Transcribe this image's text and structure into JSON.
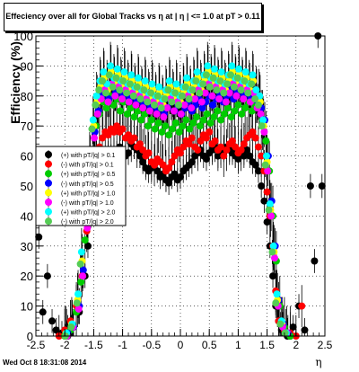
{
  "page": {
    "title": "Effeciency over all for Global Tracks vs  η at | η | <= 1.0 at pT > 0.11",
    "footer": "Wed Oct  8 18:31:08 2014"
  },
  "chart_data": {
    "type": "scatter",
    "title": "Effeciency over all for Global Tracks vs  η at | η | <= 1.0 at pT > 0.11",
    "xlabel": "η",
    "ylabel": "Efficiency (%)",
    "xlim": [
      -2.5,
      2.5
    ],
    "ylim": [
      0,
      100
    ],
    "x_ticks": [
      "-2.5",
      "-2",
      "-1.5",
      "-1",
      "-0.5",
      "0",
      "0.5",
      "1",
      "1.5",
      "2",
      "2.5"
    ],
    "y_ticks": [
      "0",
      "10",
      "20",
      "30",
      "40",
      "50",
      "60",
      "70",
      "80",
      "90",
      "100"
    ],
    "legend_position": "left-middle",
    "series": [
      {
        "name": "(+) with pT/|q| > 0.1",
        "color": "#000000",
        "x": [
          -2.45,
          -2.38,
          -2.3,
          -2.22,
          -2.15,
          -2.05,
          -1.95,
          -1.85,
          -1.75,
          -1.65,
          -1.6,
          -1.55,
          -1.5,
          -1.45,
          -1.4,
          -1.35,
          -1.3,
          -1.25,
          -1.2,
          -1.15,
          -1.1,
          -1.05,
          -1.0,
          -0.95,
          -0.9,
          -0.85,
          -0.8,
          -0.75,
          -0.7,
          -0.65,
          -0.6,
          -0.55,
          -0.5,
          -0.45,
          -0.4,
          -0.35,
          -0.3,
          -0.25,
          -0.2,
          -0.15,
          -0.1,
          -0.05,
          0.0,
          0.05,
          0.1,
          0.15,
          0.2,
          0.25,
          0.3,
          0.35,
          0.4,
          0.45,
          0.5,
          0.55,
          0.6,
          0.65,
          0.7,
          0.75,
          0.8,
          0.85,
          0.9,
          0.95,
          1.0,
          1.05,
          1.1,
          1.15,
          1.2,
          1.25,
          1.3,
          1.35,
          1.4,
          1.45,
          1.5,
          1.55,
          1.6,
          1.65,
          1.7,
          1.75,
          1.8,
          1.85,
          1.9,
          1.95,
          2.05,
          2.15,
          2.25,
          2.32,
          2.38,
          2.45
        ],
        "y": [
          33,
          8,
          20,
          5,
          2,
          1,
          0,
          3,
          8,
          20,
          30,
          40,
          47,
          52,
          55,
          57,
          59,
          61,
          60,
          62,
          61,
          63,
          62,
          60,
          61,
          64,
          63,
          62,
          60,
          58,
          56,
          55,
          56,
          57,
          55,
          53,
          54,
          52,
          51,
          53,
          54,
          52,
          53,
          55,
          56,
          57,
          58,
          60,
          61,
          62,
          60,
          59,
          61,
          62,
          63,
          60,
          61,
          62,
          63,
          62,
          61,
          60,
          59,
          61,
          60,
          62,
          60,
          58,
          57,
          55,
          50,
          45,
          38,
          30,
          20,
          10,
          5,
          2,
          1,
          0,
          0,
          3,
          10,
          2,
          50,
          25,
          100,
          50
        ]
      },
      {
        "name": "(-) with pT/|q| > 0.1",
        "color": "#ff0000",
        "x": [
          -2.1,
          -2.0,
          -1.9,
          -1.8,
          -1.7,
          -1.62,
          -1.55,
          -1.5,
          -1.45,
          -1.4,
          -1.35,
          -1.3,
          -1.25,
          -1.2,
          -1.15,
          -1.1,
          -1.05,
          -1.0,
          -0.95,
          -0.9,
          -0.85,
          -0.8,
          -0.75,
          -0.7,
          -0.65,
          -0.6,
          -0.55,
          -0.5,
          -0.45,
          -0.4,
          -0.35,
          -0.3,
          -0.25,
          -0.2,
          -0.15,
          -0.1,
          -0.05,
          0.0,
          0.05,
          0.1,
          0.15,
          0.2,
          0.25,
          0.3,
          0.35,
          0.4,
          0.45,
          0.5,
          0.55,
          0.6,
          0.65,
          0.7,
          0.75,
          0.8,
          0.85,
          0.9,
          0.95,
          1.0,
          1.05,
          1.1,
          1.15,
          1.2,
          1.25,
          1.3,
          1.35,
          1.4,
          1.45,
          1.5,
          1.55,
          1.6,
          1.65,
          1.7,
          1.8,
          1.9,
          2.0,
          2.1
        ],
        "y": [
          0,
          2,
          5,
          10,
          20,
          35,
          48,
          55,
          60,
          63,
          66,
          68,
          67,
          69,
          68,
          70,
          68,
          69,
          66,
          67,
          65,
          66,
          63,
          64,
          62,
          60,
          61,
          58,
          57,
          59,
          58,
          57,
          55,
          56,
          58,
          60,
          62,
          61,
          63,
          65,
          64,
          66,
          63,
          62,
          65,
          67,
          66,
          68,
          64,
          65,
          62,
          63,
          60,
          62,
          64,
          65,
          63,
          61,
          62,
          64,
          66,
          67,
          68,
          66,
          63,
          60,
          55,
          48,
          40,
          30,
          15,
          5,
          2,
          1,
          0,
          10
        ]
      },
      {
        "name": "(+) with pT/|q| > 0.5",
        "color": "#00cc00",
        "x": [
          -2.0,
          -1.9,
          -1.8,
          -1.72,
          -1.65,
          -1.58,
          -1.52,
          -1.46,
          -1.4,
          -1.34,
          -1.28,
          -1.22,
          -1.16,
          -1.1,
          -1.04,
          -0.98,
          -0.92,
          -0.86,
          -0.8,
          -0.74,
          -0.68,
          -0.62,
          -0.56,
          -0.5,
          -0.44,
          -0.38,
          -0.32,
          -0.26,
          -0.2,
          -0.14,
          -0.08,
          -0.02,
          0.04,
          0.1,
          0.16,
          0.22,
          0.28,
          0.34,
          0.4,
          0.46,
          0.52,
          0.58,
          0.64,
          0.7,
          0.76,
          0.82,
          0.88,
          0.94,
          1.0,
          1.06,
          1.12,
          1.18,
          1.24,
          1.3,
          1.36,
          1.42,
          1.48,
          1.54,
          1.6,
          1.66,
          1.72,
          1.8,
          1.9
        ],
        "y": [
          0,
          2,
          8,
          18,
          32,
          48,
          62,
          70,
          74,
          78,
          76,
          80,
          77,
          79,
          75,
          78,
          74,
          76,
          73,
          75,
          72,
          74,
          70,
          72,
          69,
          71,
          68,
          70,
          67,
          69,
          71,
          68,
          70,
          72,
          69,
          71,
          73,
          70,
          72,
          74,
          71,
          73,
          75,
          72,
          74,
          76,
          73,
          75,
          77,
          74,
          76,
          78,
          75,
          77,
          79,
          72,
          65,
          55,
          40,
          25,
          10,
          3,
          0
        ]
      },
      {
        "name": "(-) with pT/|q| > 0.5",
        "color": "#0000ff",
        "x": [
          -1.95,
          -1.85,
          -1.75,
          -1.68,
          -1.6,
          -1.54,
          -1.48,
          -1.42,
          -1.36,
          -1.3,
          -1.24,
          -1.18,
          -1.12,
          -1.06,
          -1.0,
          -0.94,
          -0.88,
          -0.82,
          -0.76,
          -0.7,
          -0.64,
          -0.58,
          -0.52,
          -0.46,
          -0.4,
          -0.34,
          -0.28,
          -0.22,
          -0.16,
          -0.1,
          -0.04,
          0.02,
          0.08,
          0.14,
          0.2,
          0.26,
          0.32,
          0.38,
          0.44,
          0.5,
          0.56,
          0.62,
          0.68,
          0.74,
          0.8,
          0.86,
          0.92,
          0.98,
          1.04,
          1.1,
          1.16,
          1.22,
          1.28,
          1.34,
          1.4,
          1.46,
          1.52,
          1.58,
          1.64,
          1.7,
          1.78,
          1.86
        ],
        "y": [
          1,
          3,
          10,
          22,
          38,
          55,
          68,
          75,
          80,
          82,
          79,
          84,
          81,
          83,
          80,
          82,
          79,
          81,
          78,
          80,
          77,
          79,
          76,
          78,
          75,
          77,
          74,
          76,
          78,
          75,
          77,
          74,
          76,
          78,
          75,
          77,
          79,
          76,
          78,
          80,
          77,
          79,
          81,
          78,
          80,
          82,
          79,
          81,
          83,
          80,
          82,
          79,
          81,
          78,
          76,
          72,
          60,
          45,
          30,
          12,
          4,
          1
        ]
      },
      {
        "name": "(+) with pT/|q| > 1.0",
        "color": "#ffff00",
        "x": [
          -1.98,
          -1.88,
          -1.78,
          -1.7,
          -1.62,
          -1.56,
          -1.5,
          -1.44,
          -1.38,
          -1.32,
          -1.26,
          -1.2,
          -1.14,
          -1.08,
          -1.02,
          -0.96,
          -0.9,
          -0.84,
          -0.78,
          -0.72,
          -0.66,
          -0.6,
          -0.54,
          -0.48,
          -0.42,
          -0.36,
          -0.3,
          -0.24,
          -0.18,
          -0.12,
          -0.06,
          0.0,
          0.06,
          0.12,
          0.18,
          0.24,
          0.3,
          0.36,
          0.42,
          0.48,
          0.54,
          0.6,
          0.66,
          0.72,
          0.78,
          0.84,
          0.9,
          0.96,
          1.02,
          1.08,
          1.14,
          1.2,
          1.26,
          1.32,
          1.38,
          1.44,
          1.5,
          1.56,
          1.62,
          1.68,
          1.76,
          1.84
        ],
        "y": [
          1,
          4,
          12,
          25,
          40,
          58,
          70,
          78,
          83,
          86,
          82,
          88,
          84,
          87,
          83,
          86,
          82,
          85,
          81,
          84,
          80,
          83,
          79,
          82,
          78,
          81,
          77,
          80,
          83,
          79,
          82,
          78,
          81,
          84,
          80,
          83,
          86,
          82,
          85,
          88,
          84,
          87,
          83,
          86,
          82,
          85,
          88,
          84,
          87,
          83,
          86,
          82,
          85,
          80,
          78,
          70,
          58,
          42,
          28,
          12,
          4,
          1
        ]
      },
      {
        "name": "(-) with pT/|q| > 1.0",
        "color": "#ff00ff",
        "x": [
          -1.96,
          -1.86,
          -1.76,
          -1.69,
          -1.61,
          -1.55,
          -1.49,
          -1.43,
          -1.37,
          -1.31,
          -1.25,
          -1.19,
          -1.13,
          -1.07,
          -1.01,
          -0.95,
          -0.89,
          -0.83,
          -0.77,
          -0.71,
          -0.65,
          -0.59,
          -0.53,
          -0.47,
          -0.41,
          -0.35,
          -0.29,
          -0.23,
          -0.17,
          -0.11,
          -0.05,
          0.01,
          0.07,
          0.13,
          0.19,
          0.25,
          0.31,
          0.37,
          0.43,
          0.49,
          0.55,
          0.61,
          0.67,
          0.73,
          0.79,
          0.85,
          0.91,
          0.97,
          1.03,
          1.09,
          1.15,
          1.21,
          1.27,
          1.33,
          1.39,
          1.45,
          1.51,
          1.57,
          1.63,
          1.69,
          1.77,
          1.85
        ],
        "y": [
          0,
          3,
          9,
          20,
          36,
          52,
          66,
          74,
          79,
          82,
          78,
          84,
          80,
          83,
          79,
          82,
          78,
          81,
          77,
          80,
          76,
          79,
          75,
          78,
          74,
          77,
          73,
          76,
          79,
          75,
          78,
          74,
          77,
          80,
          76,
          79,
          82,
          78,
          81,
          84,
          80,
          83,
          79,
          82,
          78,
          81,
          84,
          80,
          83,
          79,
          82,
          78,
          81,
          76,
          74,
          68,
          55,
          40,
          26,
          10,
          3,
          1
        ]
      },
      {
        "name": "(+) with pT/|q| > 2.0",
        "color": "#00ffff",
        "x": [
          -1.97,
          -1.87,
          -1.77,
          -1.71,
          -1.63,
          -1.57,
          -1.51,
          -1.45,
          -1.39,
          -1.33,
          -1.27,
          -1.21,
          -1.15,
          -1.09,
          -1.03,
          -0.97,
          -0.91,
          -0.85,
          -0.79,
          -0.73,
          -0.67,
          -0.61,
          -0.55,
          -0.49,
          -0.43,
          -0.37,
          -0.31,
          -0.25,
          -0.19,
          -0.13,
          -0.07,
          -0.01,
          0.05,
          0.11,
          0.17,
          0.23,
          0.29,
          0.35,
          0.41,
          0.47,
          0.53,
          0.59,
          0.65,
          0.71,
          0.77,
          0.83,
          0.89,
          0.95,
          1.01,
          1.07,
          1.13,
          1.19,
          1.25,
          1.31,
          1.37,
          1.43,
          1.49,
          1.55,
          1.61,
          1.67,
          1.75,
          1.83
        ],
        "y": [
          1,
          4,
          14,
          28,
          44,
          60,
          72,
          80,
          85,
          88,
          84,
          90,
          86,
          89,
          85,
          88,
          84,
          87,
          83,
          86,
          82,
          85,
          81,
          84,
          80,
          83,
          79,
          82,
          85,
          81,
          84,
          80,
          83,
          86,
          82,
          85,
          88,
          84,
          87,
          90,
          86,
          89,
          85,
          88,
          84,
          87,
          90,
          86,
          89,
          85,
          88,
          84,
          87,
          82,
          80,
          72,
          60,
          44,
          30,
          14,
          5,
          1
        ]
      },
      {
        "name": "(-) with pT/|q| > 2.0",
        "color": "#55cc55",
        "x": [
          -1.99,
          -1.89,
          -1.79,
          -1.73,
          -1.64,
          -1.59,
          -1.53,
          -1.47,
          -1.41,
          -1.35,
          -1.29,
          -1.23,
          -1.17,
          -1.11,
          -1.05,
          -0.99,
          -0.93,
          -0.87,
          -0.81,
          -0.75,
          -0.69,
          -0.63,
          -0.57,
          -0.51,
          -0.45,
          -0.39,
          -0.33,
          -0.27,
          -0.21,
          -0.15,
          -0.09,
          -0.03,
          0.03,
          0.09,
          0.15,
          0.21,
          0.27,
          0.33,
          0.39,
          0.45,
          0.51,
          0.57,
          0.63,
          0.69,
          0.75,
          0.81,
          0.87,
          0.93,
          0.99,
          1.05,
          1.11,
          1.17,
          1.23,
          1.29,
          1.35,
          1.41,
          1.47,
          1.53,
          1.59,
          1.65,
          1.73,
          1.81
        ],
        "y": [
          0,
          3,
          11,
          24,
          40,
          56,
          69,
          77,
          82,
          85,
          81,
          87,
          83,
          86,
          82,
          85,
          81,
          84,
          80,
          83,
          79,
          82,
          78,
          81,
          77,
          80,
          76,
          79,
          82,
          78,
          81,
          77,
          80,
          83,
          79,
          82,
          85,
          81,
          84,
          87,
          83,
          86,
          82,
          85,
          81,
          84,
          87,
          83,
          86,
          82,
          85,
          81,
          84,
          79,
          77,
          70,
          57,
          42,
          28,
          11,
          4,
          1
        ]
      }
    ]
  }
}
